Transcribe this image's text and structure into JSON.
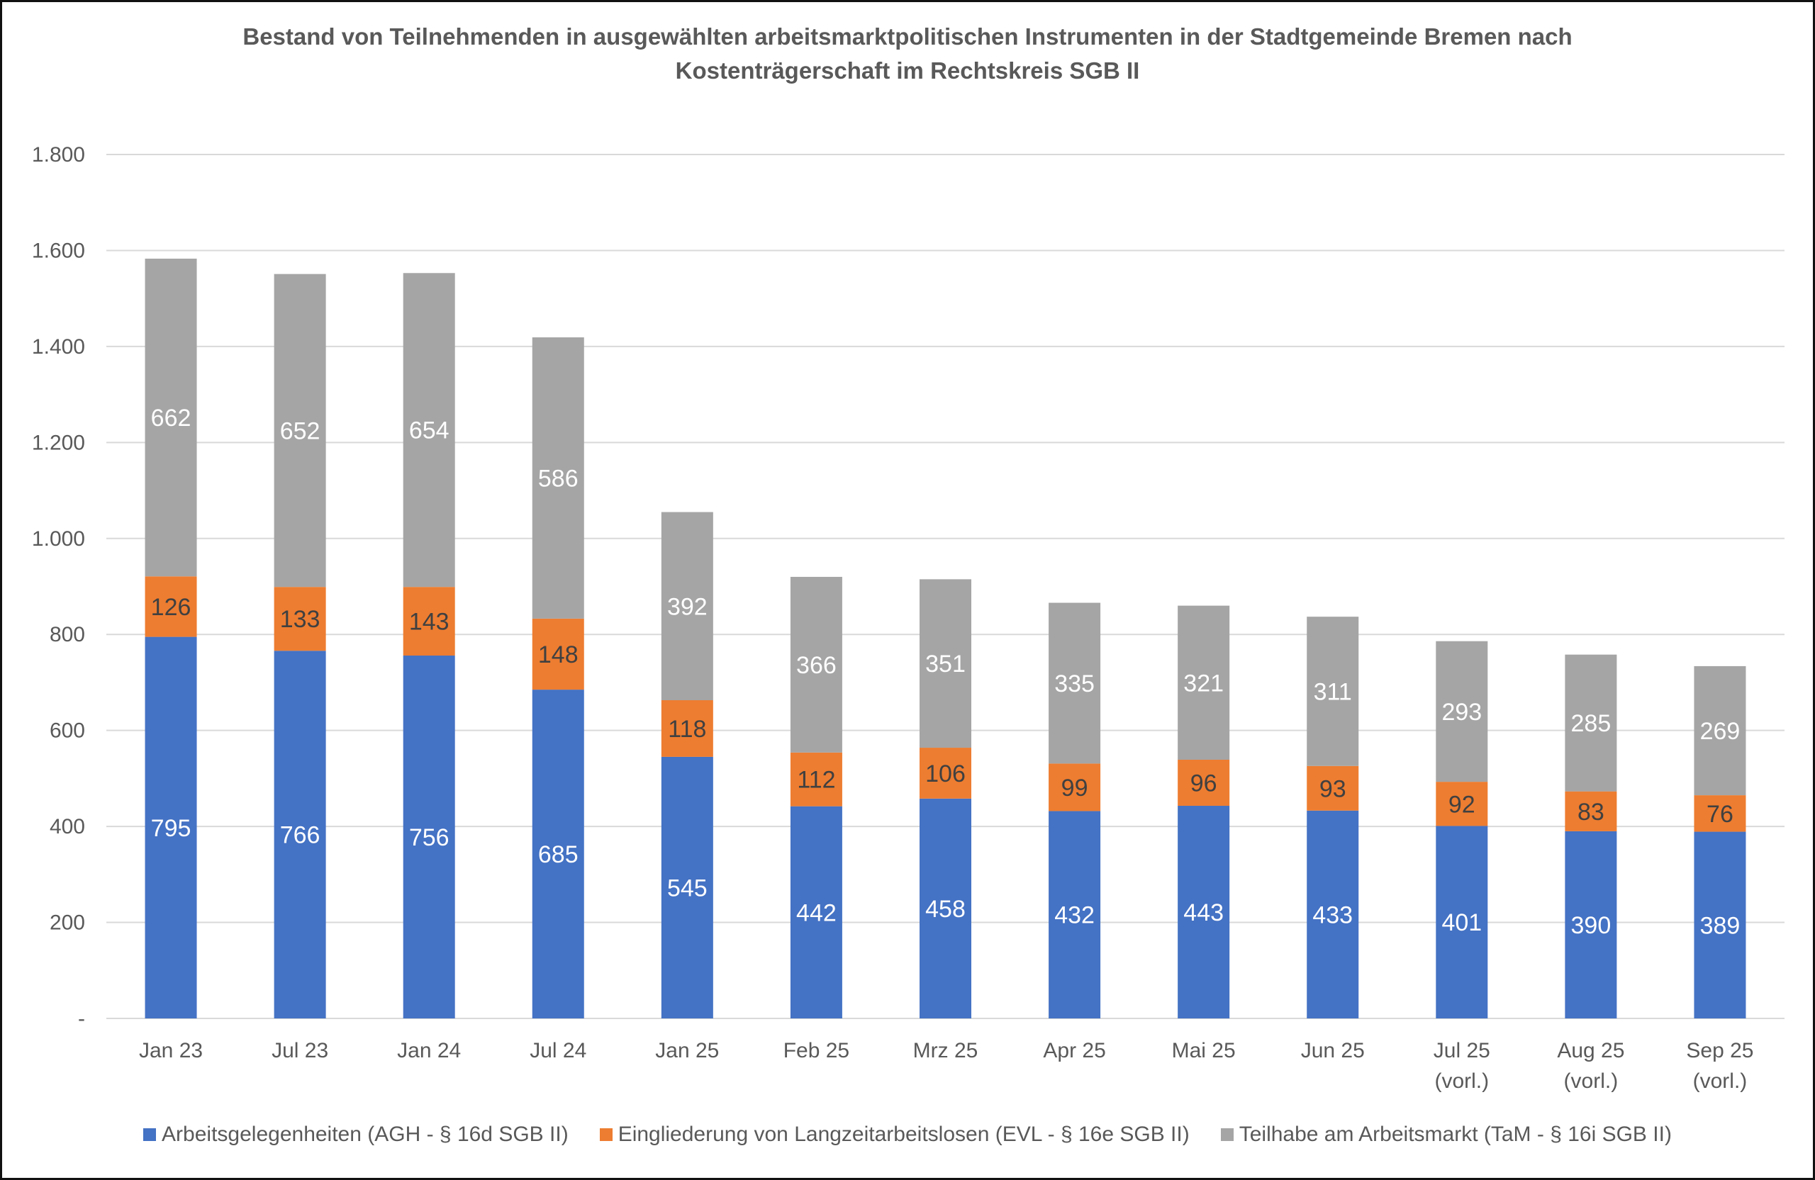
{
  "chart_data": {
    "type": "bar",
    "stacked": true,
    "title": "Bestand von Teilnehmenden in ausgewählten arbeitsmarktpolitischen Instrumenten in der Stadtgemeinde Bremen nach Kostenträgerschaft im Rechtskreis SGB II",
    "title_lines": [
      "Bestand von Teilnehmenden in ausgewählten arbeitsmarktpolitischen Instrumenten in der Stadtgemeinde Bremen nach",
      "Kostenträgerschaft im Rechtskreis SGB II"
    ],
    "xlabel": "",
    "ylabel": "",
    "ylim": [
      0,
      1800
    ],
    "yticks": [
      0,
      200,
      400,
      600,
      800,
      1000,
      1200,
      1400,
      1600,
      1800
    ],
    "ytick_labels": [
      "-",
      "200",
      "400",
      "600",
      "800",
      "1.000",
      "1.200",
      "1.400",
      "1.600",
      "1.800"
    ],
    "grid": true,
    "legend_position": "bottom",
    "categories": [
      [
        "Jan 23"
      ],
      [
        "Jul 23"
      ],
      [
        "Jan 24"
      ],
      [
        "Jul 24"
      ],
      [
        "Jan 25"
      ],
      [
        "Feb 25"
      ],
      [
        "Mrz 25"
      ],
      [
        "Apr 25"
      ],
      [
        "Mai 25"
      ],
      [
        "Jun 25"
      ],
      [
        "Jul 25",
        "(vorl.)"
      ],
      [
        "Aug 25",
        "(vorl.)"
      ],
      [
        "Sep 25",
        "(vorl.)"
      ]
    ],
    "series": [
      {
        "name": "Arbeitsgelegenheiten (AGH - § 16d SGB II)",
        "color": "#4472C4",
        "label_color": "#FFFFFF",
        "values": [
          795,
          766,
          756,
          685,
          545,
          442,
          458,
          432,
          443,
          433,
          401,
          390,
          389
        ]
      },
      {
        "name": "Eingliederung von Langzeitarbeitslosen (EVL - § 16e SGB II)",
        "color": "#ED7D31",
        "label_color": "#404040",
        "values": [
          126,
          133,
          143,
          148,
          118,
          112,
          106,
          99,
          96,
          93,
          92,
          83,
          76
        ]
      },
      {
        "name": "Teilhabe am Arbeitsmarkt (TaM - § 16i SGB II)",
        "color": "#A5A5A5",
        "label_color": "#FFFFFF",
        "values": [
          662,
          652,
          654,
          586,
          392,
          366,
          351,
          335,
          321,
          311,
          293,
          285,
          269
        ]
      }
    ]
  }
}
